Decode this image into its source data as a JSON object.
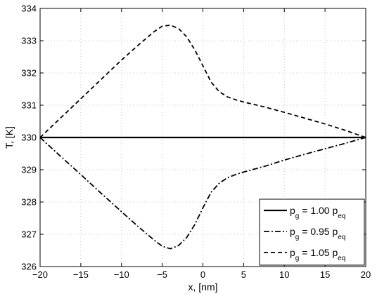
{
  "chart_data": {
    "type": "line",
    "xlabel": "x, [nm]",
    "ylabel": "T, [K]",
    "xlim": [
      -20,
      20
    ],
    "ylim": [
      326,
      334
    ],
    "xticks": [
      -20,
      -15,
      -10,
      -5,
      0,
      5,
      10,
      15,
      20
    ],
    "yticks": [
      326,
      327,
      328,
      329,
      330,
      331,
      332,
      333,
      334
    ],
    "xtick_labels": [
      "−20",
      "−15",
      "−10",
      "−5",
      "0",
      "5",
      "10",
      "15",
      "20"
    ],
    "ytick_labels": [
      "326",
      "327",
      "328",
      "329",
      "330",
      "331",
      "332",
      "333",
      "334"
    ],
    "grid": true,
    "legend_position": "bottom-right",
    "series": [
      {
        "name": "p_g = 1.00 p_eq",
        "legend": {
          "p": "p",
          "sub1": "g",
          "mid": " = 1.00 p",
          "sub2": "eq"
        },
        "style": "solid",
        "x": [
          -20,
          -15,
          -10,
          -5,
          0,
          5,
          10,
          15,
          20
        ],
        "y": [
          330,
          330,
          330,
          330,
          330,
          330,
          330,
          330,
          330
        ]
      },
      {
        "name": "p_g = 0.95 p_eq",
        "legend": {
          "p": "p",
          "sub1": "g",
          "mid": " = 0.95 p",
          "sub2": "eq"
        },
        "style": "dashdot",
        "x": [
          -20,
          -17.5,
          -15,
          -12.5,
          -10,
          -8,
          -6,
          -5,
          -4,
          -3,
          -2,
          -1,
          0,
          1,
          2,
          3,
          4,
          5,
          7.5,
          10,
          12.5,
          15,
          17.5,
          20
        ],
        "y": [
          330.0,
          329.42,
          328.85,
          328.27,
          327.7,
          327.25,
          326.82,
          326.63,
          326.55,
          326.65,
          326.9,
          327.3,
          327.82,
          328.3,
          328.58,
          328.75,
          328.85,
          328.93,
          329.1,
          329.3,
          329.48,
          329.65,
          329.82,
          330.0
        ]
      },
      {
        "name": "p_g = 1.05 p_eq",
        "legend": {
          "p": "p",
          "sub1": "g",
          "mid": " = 1.05 p",
          "sub2": "eq"
        },
        "style": "dashed",
        "x": [
          -20,
          -17.5,
          -15,
          -12.5,
          -10,
          -8,
          -6,
          -5,
          -4,
          -3,
          -2,
          -1,
          0,
          1,
          2,
          3,
          4,
          5,
          7.5,
          10,
          12.5,
          15,
          17.5,
          20
        ],
        "y": [
          330.0,
          330.6,
          331.2,
          331.8,
          332.4,
          332.85,
          333.28,
          333.45,
          333.48,
          333.38,
          333.12,
          332.72,
          332.22,
          331.72,
          331.42,
          331.26,
          331.17,
          331.1,
          330.95,
          330.78,
          330.6,
          330.42,
          330.22,
          330.0
        ]
      }
    ]
  }
}
